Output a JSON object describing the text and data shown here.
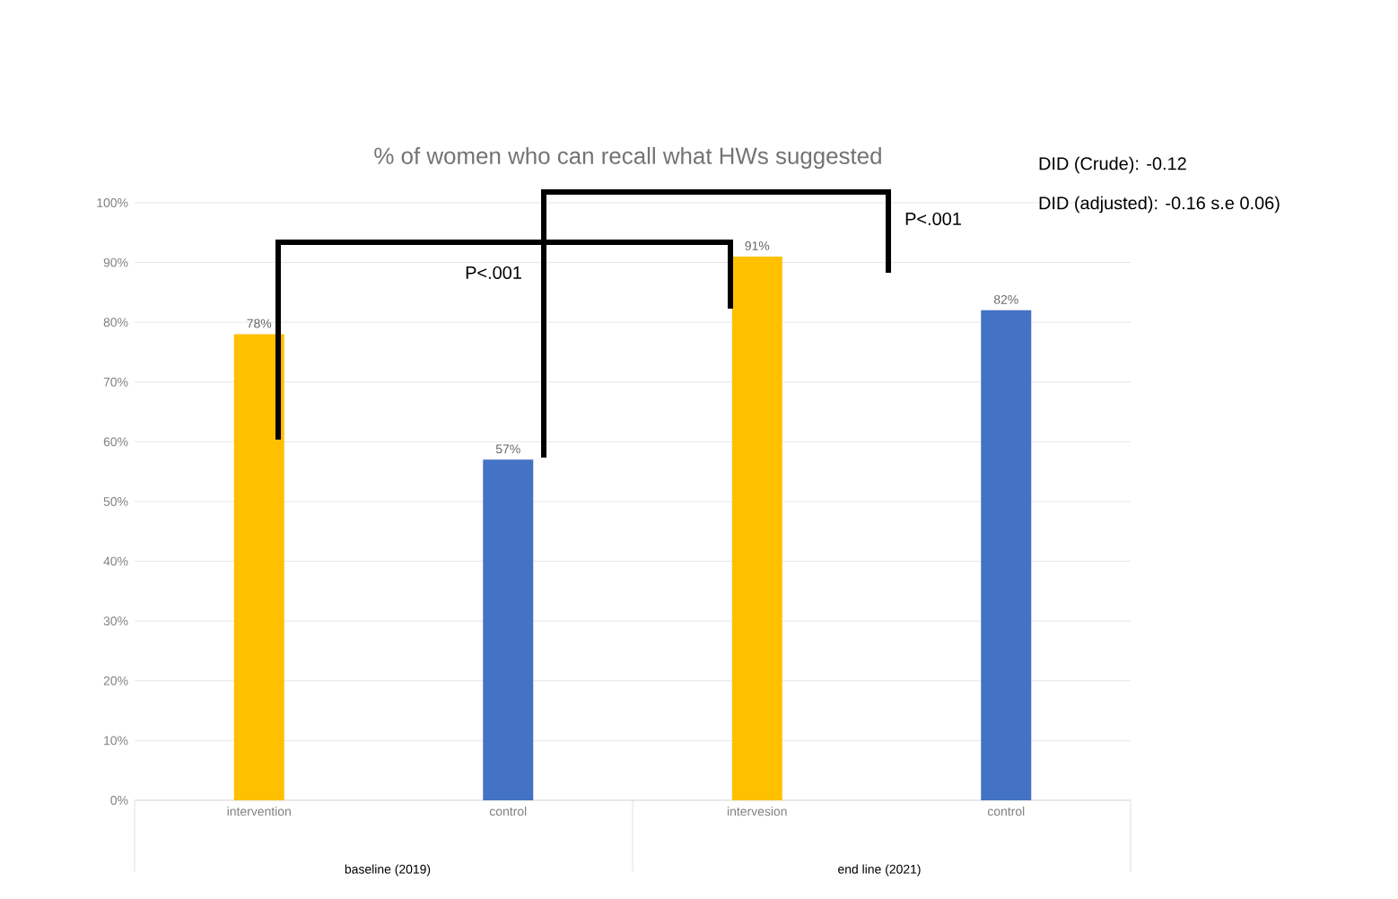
{
  "chart_data": {
    "type": "bar",
    "title": "% of women who can recall what HWs suggested",
    "categories": [
      "intervention",
      "control",
      "intervesion",
      "control"
    ],
    "values": [
      78,
      57,
      91,
      82
    ],
    "colors": [
      "#ffc000",
      "#4472c4",
      "#ffc000",
      "#4472c4"
    ],
    "value_labels": [
      "78%",
      "57%",
      "91%",
      "82%"
    ],
    "ylim": [
      0,
      100
    ],
    "yticks": [
      {
        "value": 0,
        "label": "0%"
      },
      {
        "value": 10,
        "label": "10%"
      },
      {
        "value": 20,
        "label": "20%"
      },
      {
        "value": 30,
        "label": "30%"
      },
      {
        "value": 40,
        "label": "40%"
      },
      {
        "value": 50,
        "label": "50%"
      },
      {
        "value": 60,
        "label": "60%"
      },
      {
        "value": 70,
        "label": "70%"
      },
      {
        "value": 80,
        "label": "80%"
      },
      {
        "value": 90,
        "label": "90%"
      },
      {
        "value": 100,
        "label": "100%"
      }
    ],
    "grid": "y",
    "annotations": [
      "P<.001",
      "P<.001",
      "DID (Crude): -0.12",
      "DID (adjusted): -0.16 s.e 0.06)",
      "baseline (2019)",
      "end line (2021)"
    ]
  }
}
